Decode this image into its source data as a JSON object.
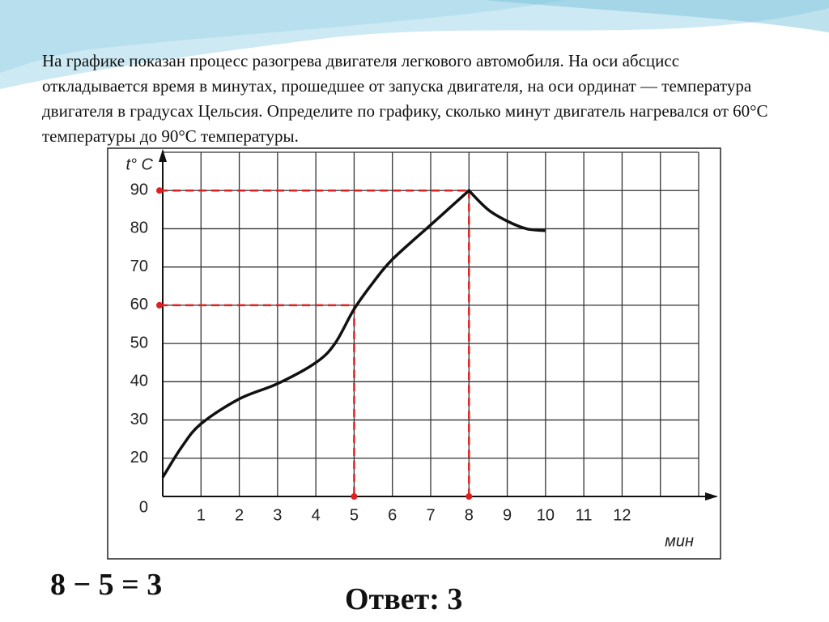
{
  "question": "На графике показан процесс разогрева двигателя легкового автомобиля. На оси абсцисс откладывается время в минутах, прошедшее от запуска двигателя, на оси ординат — температура двигателя в градусах Цельсия. Определите по графику, сколько минут двигатель нагревался от 60°С температуры  до 90°С  температуры.",
  "chart_data": {
    "type": "line",
    "x_label": "мин",
    "y_label": "t° C",
    "origin_label": "0",
    "x": [
      0,
      0.5,
      1,
      2,
      3,
      4,
      4.5,
      5,
      5.5,
      6,
      7,
      7.5,
      8,
      8.5,
      9,
      9.5,
      10
    ],
    "series": [
      {
        "color": "#111111",
        "values": [
          15,
          23,
          29,
          35.5,
          39.5,
          45,
          50,
          59,
          66,
          72,
          81,
          85.5,
          90,
          85,
          82,
          80,
          79.5
        ]
      }
    ],
    "xlim": [
      0,
      14
    ],
    "xticks": [
      1,
      2,
      3,
      4,
      5,
      6,
      7,
      8,
      9,
      10,
      11,
      12
    ],
    "ylim": [
      10,
      100
    ],
    "yticks": [
      20,
      30,
      40,
      50,
      60,
      70,
      80,
      90
    ],
    "grid": true,
    "guides": [
      {
        "x": 5,
        "y": 60,
        "color": "#e02020"
      },
      {
        "x": 8,
        "y": 90,
        "color": "#e02020"
      }
    ]
  },
  "solution": "8 − 5 = 3",
  "answer": "Ответ: 3"
}
